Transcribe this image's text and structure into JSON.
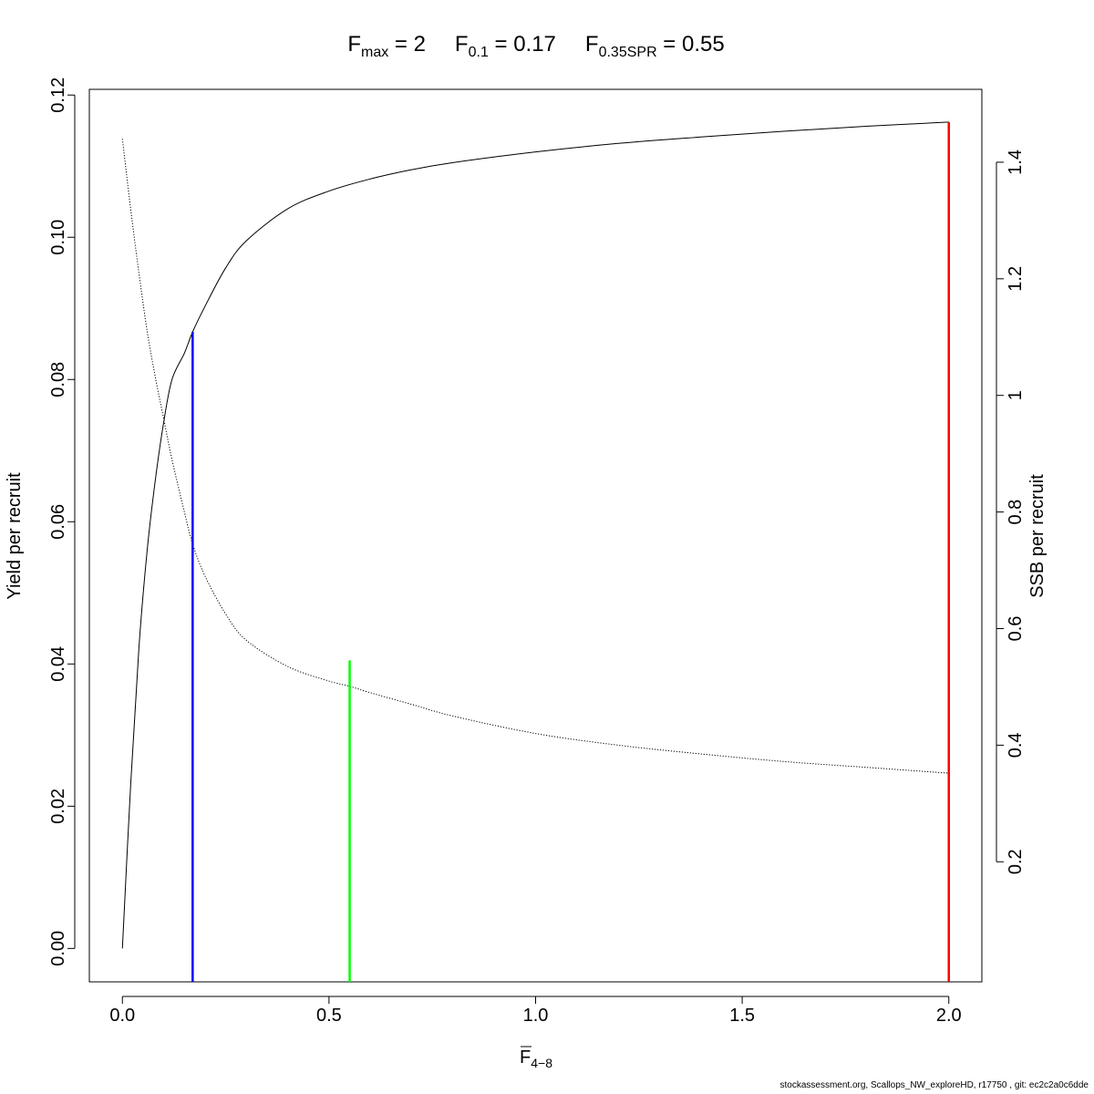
{
  "chart_data": {
    "type": "line",
    "title_parts": [
      {
        "base": "F",
        "sub": "max",
        "eq": " = ",
        "value": "2"
      },
      {
        "base": "F",
        "sub": "0.1",
        "eq": " = ",
        "value": "0.17"
      },
      {
        "base": "F",
        "sub": "0.35SPR",
        "eq": " = ",
        "value": "0.55"
      }
    ],
    "xlabel": {
      "base": "F",
      "sub": "4−8"
    },
    "ylabel_left": "Yield per recruit",
    "ylabel_right": "SSB per recruit",
    "xlim": [
      -0.08,
      2.08
    ],
    "ylim_left": [
      -0.0047,
      0.1208
    ],
    "ylim_right": [
      -0.006,
      1.525
    ],
    "x_ticks": [
      0,
      0.5,
      1,
      1.5,
      2
    ],
    "x_tick_labels": [
      "0.0",
      "0.5",
      "1.0",
      "1.5",
      "2.0"
    ],
    "y_left_ticks": [
      0,
      0.02,
      0.04,
      0.06,
      0.08,
      0.1,
      0.12
    ],
    "y_left_tick_labels": [
      "0.00",
      "0.02",
      "0.04",
      "0.06",
      "0.08",
      "0.10",
      "0.12"
    ],
    "y_right_ticks": [
      0.2,
      0.4,
      0.6,
      0.8,
      1.0,
      1.2,
      1.4
    ],
    "y_right_tick_labels": [
      "0.2",
      "0.4",
      "0.6",
      "0.8",
      "1",
      "1.2",
      "1.4"
    ],
    "grid": false,
    "series": [
      {
        "axis": "left",
        "style": "solid",
        "color": "#000000",
        "x": [
          0,
          0.02,
          0.04,
          0.06,
          0.08,
          0.1,
          0.12,
          0.15,
          0.17,
          0.2,
          0.25,
          0.3,
          0.4,
          0.5,
          0.6,
          0.7,
          0.8,
          1.0,
          1.2,
          1.4,
          1.6,
          1.8,
          2.0
        ],
        "y": [
          0,
          0.023,
          0.0423,
          0.056,
          0.066,
          0.074,
          0.08,
          0.0837,
          0.0867,
          0.0903,
          0.0957,
          0.0995,
          0.104,
          0.1065,
          0.1082,
          0.1095,
          0.1105,
          0.112,
          0.1132,
          0.1141,
          0.1149,
          0.1156,
          0.1162
        ]
      },
      {
        "axis": "right",
        "style": "dotted",
        "color": "#000000",
        "x": [
          0,
          0.02,
          0.04,
          0.06,
          0.08,
          0.1,
          0.12,
          0.15,
          0.17,
          0.2,
          0.25,
          0.3,
          0.4,
          0.5,
          0.55,
          0.6,
          0.7,
          0.8,
          1.0,
          1.2,
          1.4,
          1.6,
          1.8,
          2.0
        ],
        "y": [
          1.44,
          1.32,
          1.21,
          1.11,
          1.03,
          0.96,
          0.89,
          0.8,
          0.745,
          0.69,
          0.625,
          0.58,
          0.535,
          0.51,
          0.501,
          0.49,
          0.47,
          0.45,
          0.42,
          0.4,
          0.385,
          0.372,
          0.362,
          0.352
        ]
      }
    ],
    "reference_lines": [
      {
        "name": "F0.1",
        "x": 0.17,
        "y_left_top": 0.0867,
        "color": "#0000ff"
      },
      {
        "name": "F0.35SPR",
        "x": 0.55,
        "y_left_top": 0.0405,
        "color": "#00ff00"
      },
      {
        "name": "Fmax",
        "x": 2.0,
        "y_left_top": 0.1162,
        "color": "#ff0000"
      }
    ]
  },
  "footer_text": "stockassessment.org, Scallops_NW_exploreHD, r17750 , git: ec2c2a0c6dde"
}
